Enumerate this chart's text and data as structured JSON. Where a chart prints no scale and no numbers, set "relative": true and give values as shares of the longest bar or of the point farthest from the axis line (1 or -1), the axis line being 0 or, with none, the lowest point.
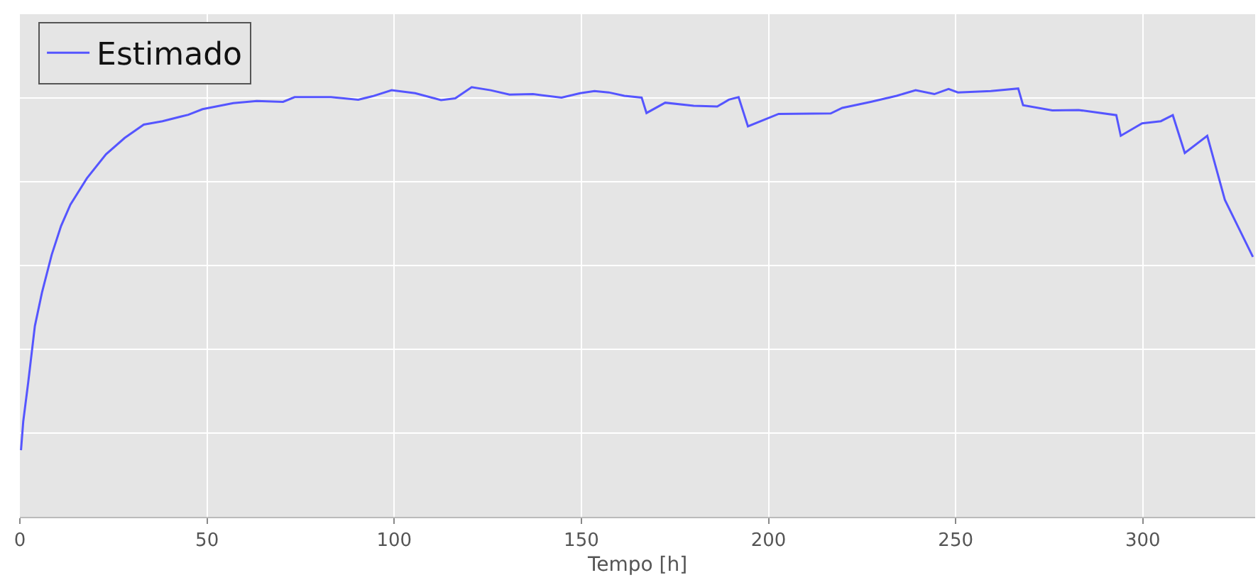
{
  "chart_data": {
    "type": "line",
    "xlabel": "Tempo [h]",
    "relative": true,
    "xlim": [
      0,
      330
    ],
    "xticks": [
      0,
      50,
      100,
      150,
      200,
      250,
      300
    ],
    "grid": true,
    "legend": "top left",
    "tick_labels": "x",
    "series": [
      {
        "name": "Estimado",
        "color": "#5555ff",
        "x": [
          0.3,
          0.9,
          2.2,
          4.0,
          5.9,
          8.5,
          11.0,
          13.5,
          17.9,
          23.0,
          28.0,
          33.1,
          38.1,
          45.0,
          48.8,
          57.0,
          63.3,
          70.3,
          73.4,
          83.1,
          90.4,
          94.2,
          99.3,
          105.6,
          112.5,
          116.3,
          120.7,
          125.8,
          130.8,
          137.1,
          144.7,
          149.7,
          153.5,
          157.3,
          161.5,
          166.1,
          167.4,
          172.4,
          180.0,
          186.3,
          189.4,
          192.0,
          194.5,
          202.7,
          216.6,
          219.7,
          227.3,
          234.2,
          239.3,
          244.3,
          248.1,
          250.6,
          259.4,
          266.7,
          268.0,
          275.8,
          282.8,
          292.9,
          294.1,
          299.8,
          304.8,
          308.0,
          311.2,
          317.2,
          321.9,
          326.3,
          329.4
        ],
        "values": [
          0.155,
          0.222,
          0.311,
          0.444,
          0.522,
          0.61,
          0.677,
          0.727,
          0.788,
          0.844,
          0.882,
          0.913,
          0.921,
          0.936,
          0.949,
          0.963,
          0.968,
          0.966,
          0.977,
          0.977,
          0.971,
          0.979,
          0.993,
          0.986,
          0.97,
          0.974,
          1,
          0.993,
          0.983,
          0.984,
          0.976,
          0.986,
          0.991,
          0.988,
          0.98,
          0.976,
          0.94,
          0.964,
          0.957,
          0.955,
          0.971,
          0.977,
          0.909,
          0.938,
          0.939,
          0.952,
          0.966,
          0.98,
          0.993,
          0.984,
          0.996,
          0.988,
          0.991,
          0.997,
          0.958,
          0.946,
          0.947,
          0.935,
          0.887,
          0.916,
          0.921,
          0.935,
          0.847,
          0.887,
          0.738,
          0.66,
          0.605
        ]
      }
    ]
  }
}
